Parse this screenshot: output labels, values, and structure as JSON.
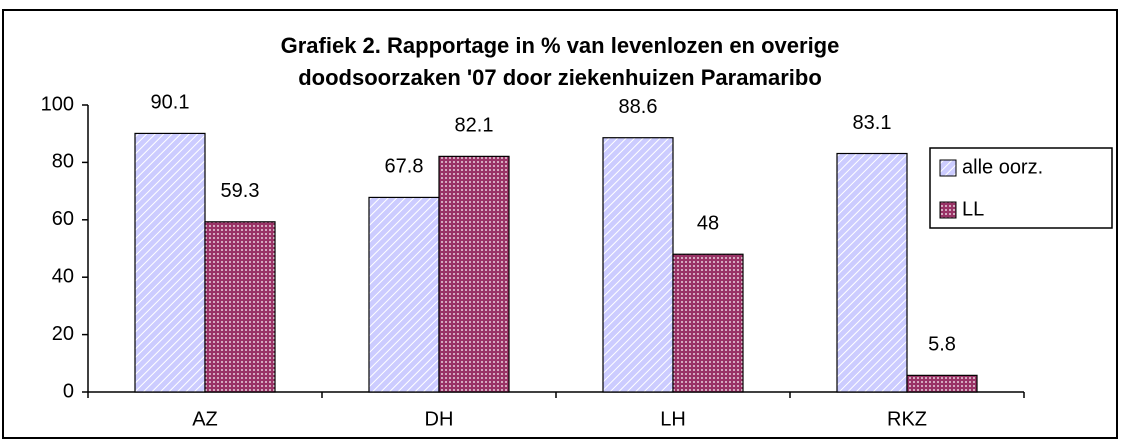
{
  "chart_data": {
    "type": "bar",
    "title": [
      "Grafiek 2. Rapportage in % van levenlozen en overige",
      "doodsoorzaken '07  door ziekenhuizen Paramaribo"
    ],
    "categories": [
      "AZ",
      "DH",
      "LH",
      "RKZ"
    ],
    "series": [
      {
        "name": "alle oorz.",
        "color": "#ccccff",
        "values": [
          90.1,
          67.8,
          88.6,
          83.1
        ]
      },
      {
        "name": "LL",
        "color": "#993366",
        "values": [
          59.3,
          82.1,
          48,
          5.8
        ]
      }
    ],
    "ylim": [
      0,
      100
    ],
    "yticks": [
      0,
      20,
      40,
      60,
      80,
      100
    ],
    "grid": false,
    "legend": "right"
  }
}
